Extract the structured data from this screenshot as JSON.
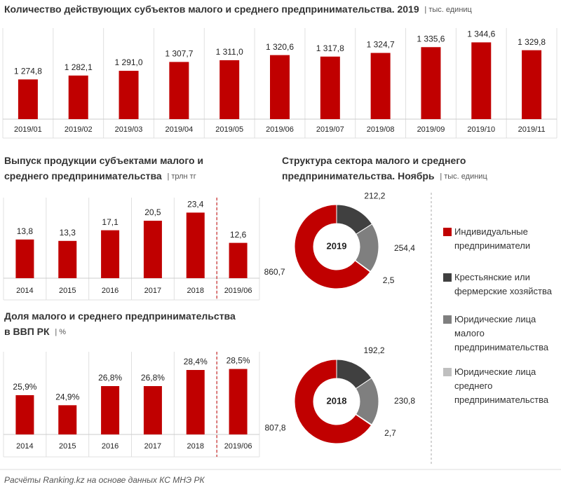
{
  "chart_data": [
    {
      "type": "bar",
      "title": "Количество действующих субъектов малого и среднего предпринимательства. 2019",
      "unit": "| тыс. единиц",
      "categories": [
        "2019/01",
        "2019/02",
        "2019/03",
        "2019/04",
        "2019/05",
        "2019/06",
        "2019/07",
        "2019/08",
        "2019/09",
        "2019/10",
        "2019/11"
      ],
      "values": [
        1274.8,
        1282.1,
        1291.0,
        1307.7,
        1311.0,
        1320.6,
        1317.8,
        1324.7,
        1335.6,
        1344.6,
        1329.8
      ],
      "value_labels": [
        "1 274,8",
        "1 282,1",
        "1 291,0",
        "1 307,7",
        "1 311,0",
        "1 320,6",
        "1 317,8",
        "1 324,7",
        "1 335,6",
        "1 344,6",
        "1 329,8"
      ],
      "color": "#c00000",
      "ylim": [
        1200,
        1365
      ]
    },
    {
      "type": "bar",
      "title": [
        "Выпуск продукции субъектами малого и",
        "среднего предпринимательства"
      ],
      "unit": "| трлн тг",
      "categories": [
        "2014",
        "2015",
        "2016",
        "2017",
        "2018",
        "2019/06"
      ],
      "values": [
        13.8,
        13.3,
        17.1,
        20.5,
        23.4,
        12.6
      ],
      "value_labels": [
        "13,8",
        "13,3",
        "17,1",
        "20,5",
        "23,4",
        "12,6"
      ],
      "color": "#c00000",
      "ylim": [
        0,
        28
      ]
    },
    {
      "type": "bar",
      "title": [
        "Доля малого и среднего предпринимательства",
        "в ВВП РК"
      ],
      "unit": "| %",
      "categories": [
        "2014",
        "2015",
        "2016",
        "2017",
        "2018",
        "2019/06"
      ],
      "values": [
        25.9,
        24.9,
        26.8,
        26.8,
        28.4,
        28.5
      ],
      "value_labels": [
        "25,9%",
        "24,9%",
        "26,8%",
        "26,8%",
        "28,4%",
        "28,5%"
      ],
      "color": "#c00000",
      "ylim": [
        22,
        30
      ]
    },
    {
      "type": "pie",
      "donut": true,
      "title": [
        "Структура сектора малого и среднего",
        "предпринимательства. Ноябрь"
      ],
      "unit": "| тыс. единиц",
      "categories": [
        "Индивидуальные предприниматели",
        "Крестьянские или фермерские хозяйства",
        "Юридические лица малого предпринимательства",
        "Юридические лица среднего предпринимательства"
      ],
      "colors": [
        "#c00000",
        "#404040",
        "#7f7f7f",
        "#bfbfbf"
      ],
      "series": [
        {
          "name": "2019",
          "values": [
            860.7,
            212.2,
            254.4,
            2.5
          ],
          "value_labels": [
            "860,7",
            "212,2",
            "254,4",
            "2,5"
          ]
        },
        {
          "name": "2018",
          "values": [
            807.8,
            192.2,
            230.8,
            2.7
          ],
          "value_labels": [
            "807,8",
            "192,2",
            "230,8",
            "2,7"
          ]
        }
      ]
    }
  ],
  "source": "Расчёты Ranking.kz на основе данных КС МНЭ РК"
}
